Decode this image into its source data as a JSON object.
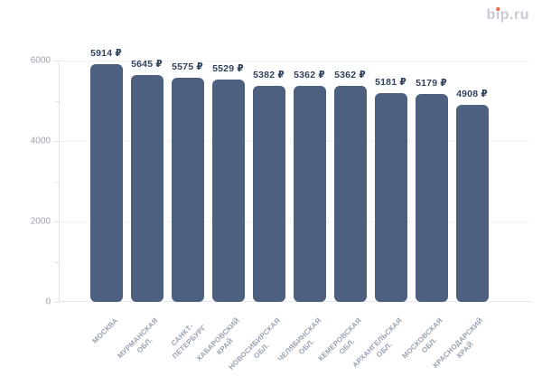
{
  "logo": {
    "text": "bip.ru",
    "dot_color": "#f0664a"
  },
  "chart_data": {
    "type": "bar",
    "title": "",
    "categories": [
      "МОСКВА",
      "МУРМАНСКАЯ ОБЛ.",
      "САНКТ-ПЕТЕРБУРГ",
      "ХАБАРОВСКИЙ КРАЙ",
      "НОВОСИБИРСКАЯ ОБЛ.",
      "ЧЕЛЯБИНСКАЯ ОБЛ.",
      "КЕМЕРОВСКАЯ ОБЛ.",
      "АРХАНГЕЛЬСКАЯ ОБЛ.",
      "МОСКОВСКАЯ ОБЛ.",
      "КРАСНОДАРСКИЙ КРАЙ"
    ],
    "category_lines": [
      [
        "МОСКВА"
      ],
      [
        "МУРМАНСКАЯ",
        "ОБЛ."
      ],
      [
        "САНКТ-",
        "ПЕТЕРБУРГ"
      ],
      [
        "ХАБАРОВСКИЙ",
        "КРАЙ"
      ],
      [
        "НОВОСИБИРСКАЯ",
        "ОБЛ."
      ],
      [
        "ЧЕЛЯБИНСКАЯ",
        "ОБЛ."
      ],
      [
        "КЕМЕРОВСКАЯ",
        "ОБЛ."
      ],
      [
        "АРХАНГЕЛЬСКАЯ",
        "ОБЛ."
      ],
      [
        "МОСКОВСКАЯ",
        "ОБЛ."
      ],
      [
        "КРАСНОДАРСКИЙ",
        "КРАЙ"
      ]
    ],
    "values": [
      5914,
      5645,
      5575,
      5529,
      5382,
      5362,
      5362,
      5181,
      5179,
      4908
    ],
    "currency": "₽",
    "xlabel": "",
    "ylabel": "",
    "ylim": [
      0,
      6000
    ],
    "yticks": [
      0,
      2000,
      4000,
      6000
    ],
    "yticks_minor": [
      1000,
      3000,
      5000
    ],
    "grid": "dotted horizontal at labeled ticks",
    "legend": "none",
    "bar_color": "#4d6080"
  }
}
